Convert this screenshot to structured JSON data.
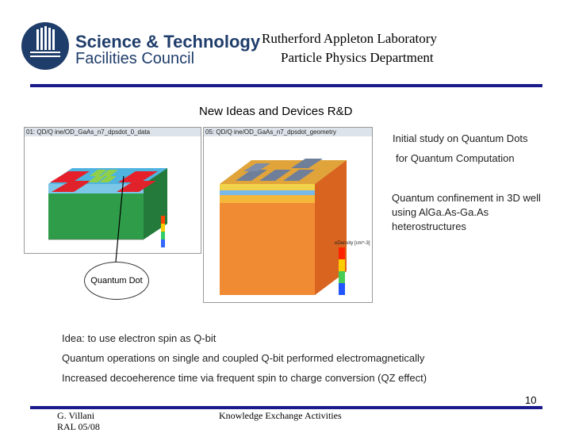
{
  "header": {
    "logo_line1": "Science & Technology",
    "logo_line2": "Facilities Council",
    "lab_name": "Rutherford Appleton Laboratory",
    "department": "Particle Physics Department"
  },
  "slide": {
    "title": "New Ideas  and Devices R&D",
    "side_text_1": "Initial study on Quantum Dots",
    "side_text_2": "for Quantum Computation",
    "side_text_3": "Quantum confinement in 3D well using AlGa.As-Ga.As heterostructures",
    "callout_label": "Quantum Dot",
    "bullets": [
      "Idea: to use electron spin as Q-bit",
      "Quantum operations on single and coupled Q-bit performed electromagnetically",
      "Increased decoeherence time via frequent spin to charge conversion (QZ effect)"
    ],
    "page_number": "10"
  },
  "figures": {
    "left_caption": "01: QD/Q ine/OD_GaAs_n7_dpsdot_0_data",
    "right_caption": "05: QD/Q ine/OD_GaAs_n7_dpsdot_geometry",
    "right_legend_title": "eDensity [cm^-3]"
  },
  "footer": {
    "author": "G. Villani",
    "affiliation": "RAL 05/08",
    "center_text": "Knowledge Exchange  Activities"
  },
  "colors": {
    "brand": "#1f3d6b",
    "rule": "#1a1a8c"
  }
}
